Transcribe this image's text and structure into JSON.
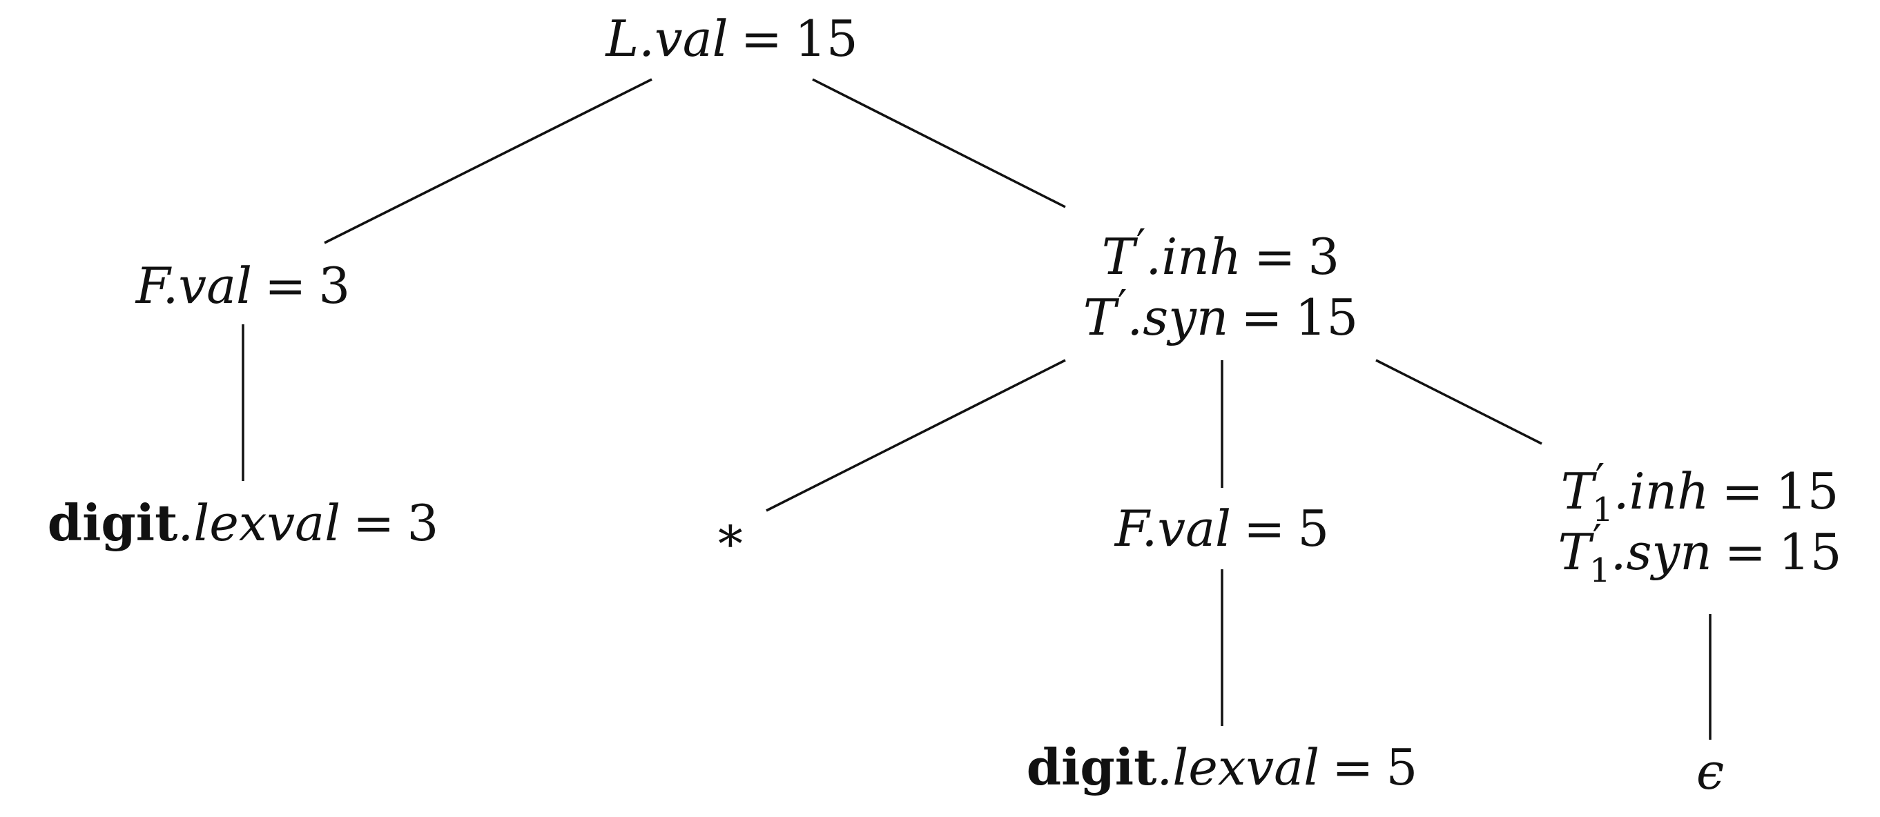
{
  "tree": {
    "root": {
      "symbol": "L",
      "attr": "val",
      "value": "15"
    },
    "f_left": {
      "symbol": "F",
      "attr": "val",
      "value": "3"
    },
    "digit_left": {
      "token": "digit",
      "attr": "lexval",
      "value": "3"
    },
    "t_prime": {
      "symbol": "T",
      "prime": "′",
      "inh_attr": "inh",
      "inh_value": "3",
      "syn_attr": "syn",
      "syn_value": "15"
    },
    "star": {
      "symbol": "∗"
    },
    "f_mid": {
      "symbol": "F",
      "attr": "val",
      "value": "5"
    },
    "digit_mid": {
      "token": "digit",
      "attr": "lexval",
      "value": "5"
    },
    "t1_prime": {
      "symbol": "T",
      "prime": "′",
      "subscript": "1",
      "inh_attr": "inh",
      "inh_value": "15",
      "syn_attr": "syn",
      "syn_value": "15"
    },
    "epsilon": {
      "symbol": "ϵ"
    }
  },
  "eq": "=",
  "dot": "."
}
